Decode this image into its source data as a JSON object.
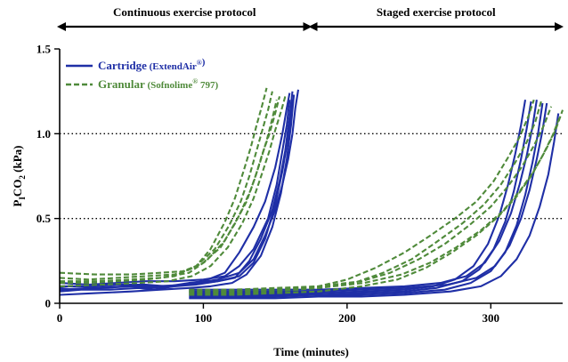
{
  "chart_data": {
    "type": "line",
    "title": "",
    "xlabel": "Time (minutes)",
    "ylabel": "PICO2 (kPa)",
    "ylabel_parts": {
      "base": "P",
      "sub1": "I",
      "mid": "CO",
      "sub2": "2",
      "unit": " (kPa)"
    },
    "xlim": [
      0,
      350
    ],
    "ylim": [
      0,
      1.5
    ],
    "x_ticks": [
      0,
      100,
      200,
      300
    ],
    "x_tick_labels": [
      "0",
      "100",
      "200",
      "300"
    ],
    "y_ticks": [
      0,
      0.5,
      1.0,
      1.5
    ],
    "y_tick_labels": [
      "0",
      "0.5",
      "1.0",
      "1.5"
    ],
    "reference_lines": [
      0.5,
      1.0
    ],
    "protocols": [
      {
        "label": "Continuous exercise protocol",
        "x_start": 0,
        "x_end": 175
      },
      {
        "label": "Staged exercise protocol",
        "x_start": 175,
        "x_end": 350
      }
    ],
    "legend": {
      "placement": "top-left",
      "entries": [
        {
          "name": "Cartridge",
          "detail": "ExtendAir",
          "sup": "®",
          "detail_after": "",
          "color": "#1f2fa6",
          "dash": "solid"
        },
        {
          "name": "Granular",
          "detail": "Sofnolime",
          "sup": "®",
          "detail_after": " 797",
          "color": "#4f8a3a",
          "dash": "dashed"
        }
      ]
    },
    "series": [
      {
        "group": "Cartridge",
        "color": "#1f2fa6",
        "dash": "solid",
        "x": [
          0,
          10,
          30,
          50,
          62,
          75,
          90,
          100,
          115,
          125,
          135,
          143,
          150,
          155,
          158,
          160
        ],
        "y": [
          0.09,
          0.08,
          0.09,
          0.1,
          0.09,
          0.1,
          0.12,
          0.13,
          0.18,
          0.3,
          0.45,
          0.6,
          0.8,
          1.0,
          1.15,
          1.24
        ]
      },
      {
        "group": "Cartridge",
        "color": "#1f2fa6",
        "dash": "solid",
        "x": [
          0,
          15,
          35,
          55,
          65,
          80,
          95,
          110,
          122,
          132,
          140,
          148,
          153,
          157,
          160,
          162
        ],
        "y": [
          0.07,
          0.08,
          0.08,
          0.09,
          0.08,
          0.1,
          0.11,
          0.13,
          0.15,
          0.25,
          0.38,
          0.55,
          0.72,
          0.9,
          1.1,
          1.25
        ]
      },
      {
        "group": "Cartridge",
        "color": "#1f2fa6",
        "dash": "solid",
        "x": [
          0,
          20,
          40,
          60,
          75,
          95,
          110,
          125,
          135,
          143,
          150,
          155,
          159,
          162,
          164,
          166
        ],
        "y": [
          0.1,
          0.1,
          0.11,
          0.11,
          0.1,
          0.12,
          0.14,
          0.18,
          0.26,
          0.4,
          0.55,
          0.7,
          0.85,
          1.0,
          1.15,
          1.26
        ]
      },
      {
        "group": "Cartridge",
        "color": "#1f2fa6",
        "dash": "solid",
        "x": [
          0,
          20,
          40,
          60,
          80,
          100,
          115,
          125,
          135,
          145,
          151,
          155,
          158,
          160
        ],
        "y": [
          0.12,
          0.11,
          0.12,
          0.13,
          0.13,
          0.14,
          0.16,
          0.22,
          0.32,
          0.5,
          0.7,
          0.9,
          1.05,
          1.2
        ]
      },
      {
        "group": "Cartridge",
        "color": "#1f2fa6",
        "dash": "solid",
        "x": [
          0,
          25,
          50,
          70,
          90,
          105,
          120,
          130,
          140,
          148,
          154,
          158,
          161,
          163
        ],
        "y": [
          0.05,
          0.06,
          0.07,
          0.08,
          0.09,
          0.1,
          0.12,
          0.17,
          0.28,
          0.45,
          0.65,
          0.85,
          1.05,
          1.23
        ]
      },
      {
        "group": "Cartridge",
        "color": "#1f2fa6",
        "dash": "solid",
        "x": [
          0,
          20,
          45,
          65,
          90,
          110,
          125,
          135,
          143,
          150,
          155,
          159,
          162
        ],
        "y": [
          0.08,
          0.09,
          0.1,
          0.1,
          0.11,
          0.13,
          0.16,
          0.24,
          0.38,
          0.58,
          0.78,
          0.98,
          1.2
        ]
      },
      {
        "group": "Granular",
        "color": "#4f8a3a",
        "dash": "dashed",
        "x": [
          0,
          20,
          40,
          60,
          80,
          95,
          105,
          115,
          122,
          128,
          133,
          137,
          141,
          144
        ],
        "y": [
          0.12,
          0.12,
          0.13,
          0.14,
          0.16,
          0.22,
          0.32,
          0.48,
          0.62,
          0.78,
          0.92,
          1.05,
          1.17,
          1.27
        ]
      },
      {
        "group": "Granular",
        "color": "#4f8a3a",
        "dash": "dashed",
        "x": [
          0,
          20,
          40,
          60,
          80,
          95,
          108,
          118,
          126,
          132,
          137,
          141,
          145,
          148
        ],
        "y": [
          0.15,
          0.14,
          0.15,
          0.16,
          0.17,
          0.22,
          0.32,
          0.46,
          0.6,
          0.75,
          0.9,
          1.02,
          1.14,
          1.25
        ]
      },
      {
        "group": "Granular",
        "color": "#4f8a3a",
        "dash": "dashed",
        "x": [
          0,
          25,
          50,
          70,
          88,
          100,
          112,
          122,
          130,
          136,
          141,
          146,
          150,
          153
        ],
        "y": [
          0.18,
          0.17,
          0.17,
          0.18,
          0.19,
          0.24,
          0.33,
          0.47,
          0.6,
          0.74,
          0.88,
          1.0,
          1.12,
          1.22
        ]
      },
      {
        "group": "Granular",
        "color": "#4f8a3a",
        "dash": "dashed",
        "x": [
          0,
          25,
          50,
          70,
          90,
          102,
          115,
          125,
          133,
          139,
          144,
          148,
          151
        ],
        "y": [
          0.13,
          0.13,
          0.14,
          0.15,
          0.18,
          0.25,
          0.37,
          0.52,
          0.67,
          0.82,
          0.96,
          1.09,
          1.2
        ]
      },
      {
        "group": "Granular",
        "color": "#4f8a3a",
        "dash": "dashed",
        "x": [
          0,
          30,
          55,
          75,
          92,
          105,
          117,
          127,
          135,
          141,
          146,
          150,
          154,
          157
        ],
        "y": [
          0.1,
          0.11,
          0.12,
          0.13,
          0.16,
          0.22,
          0.33,
          0.47,
          0.62,
          0.77,
          0.9,
          1.02,
          1.13,
          1.22
        ]
      },
      {
        "group": "Cartridge",
        "color": "#1f2fa6",
        "dash": "solid",
        "x": [
          90,
          120,
          150,
          180,
          210,
          240,
          260,
          275,
          288,
          298,
          306,
          312,
          317,
          321,
          324
        ],
        "y": [
          0.06,
          0.06,
          0.06,
          0.06,
          0.07,
          0.08,
          0.1,
          0.14,
          0.22,
          0.35,
          0.52,
          0.7,
          0.88,
          1.05,
          1.2
        ]
      },
      {
        "group": "Cartridge",
        "color": "#1f2fa6",
        "dash": "solid",
        "x": [
          90,
          120,
          150,
          180,
          210,
          240,
          262,
          280,
          292,
          302,
          310,
          316,
          321,
          325,
          328
        ],
        "y": [
          0.05,
          0.05,
          0.05,
          0.05,
          0.06,
          0.07,
          0.09,
          0.13,
          0.2,
          0.32,
          0.48,
          0.66,
          0.85,
          1.03,
          1.19
        ]
      },
      {
        "group": "Cartridge",
        "color": "#1f2fa6",
        "dash": "solid",
        "x": [
          90,
          120,
          150,
          180,
          210,
          240,
          265,
          283,
          296,
          306,
          314,
          320,
          325,
          329,
          332
        ],
        "y": [
          0.08,
          0.08,
          0.08,
          0.08,
          0.09,
          0.1,
          0.12,
          0.16,
          0.24,
          0.37,
          0.53,
          0.7,
          0.87,
          1.04,
          1.2
        ]
      },
      {
        "group": "Cartridge",
        "color": "#1f2fa6",
        "dash": "solid",
        "x": [
          90,
          120,
          150,
          180,
          210,
          240,
          268,
          286,
          300,
          310,
          318,
          324,
          329,
          333,
          336
        ],
        "y": [
          0.04,
          0.04,
          0.04,
          0.05,
          0.05,
          0.06,
          0.08,
          0.12,
          0.19,
          0.3,
          0.46,
          0.64,
          0.83,
          1.01,
          1.18
        ]
      },
      {
        "group": "Cartridge",
        "color": "#1f2fa6",
        "dash": "solid",
        "x": [
          90,
          120,
          150,
          180,
          210,
          240,
          270,
          290,
          303,
          313,
          321,
          327,
          332,
          336,
          339
        ],
        "y": [
          0.07,
          0.07,
          0.07,
          0.07,
          0.08,
          0.09,
          0.11,
          0.15,
          0.22,
          0.34,
          0.5,
          0.67,
          0.85,
          1.02,
          1.18
        ]
      },
      {
        "group": "Cartridge",
        "color": "#1f2fa6",
        "dash": "solid",
        "x": [
          90,
          120,
          150,
          180,
          210,
          240,
          272,
          293,
          307,
          318,
          327,
          334,
          340,
          344,
          347
        ],
        "y": [
          0.03,
          0.03,
          0.03,
          0.04,
          0.04,
          0.05,
          0.07,
          0.1,
          0.16,
          0.26,
          0.4,
          0.57,
          0.76,
          0.95,
          1.12
        ]
      },
      {
        "group": "Granular",
        "color": "#4f8a3a",
        "dash": "dashed",
        "x": [
          90,
          120,
          150,
          180,
          200,
          220,
          240,
          258,
          275,
          290,
          302,
          312,
          320,
          326,
          330
        ],
        "y": [
          0.07,
          0.07,
          0.08,
          0.1,
          0.14,
          0.21,
          0.3,
          0.4,
          0.5,
          0.6,
          0.72,
          0.86,
          0.98,
          1.1,
          1.2
        ]
      },
      {
        "group": "Granular",
        "color": "#4f8a3a",
        "dash": "dashed",
        "x": [
          90,
          120,
          150,
          180,
          205,
          225,
          245,
          262,
          280,
          295,
          307,
          317,
          325,
          331,
          335
        ],
        "y": [
          0.06,
          0.06,
          0.07,
          0.09,
          0.12,
          0.18,
          0.26,
          0.36,
          0.47,
          0.58,
          0.7,
          0.83,
          0.95,
          1.07,
          1.19
        ]
      },
      {
        "group": "Granular",
        "color": "#4f8a3a",
        "dash": "dashed",
        "x": [
          90,
          120,
          150,
          180,
          210,
          230,
          250,
          268,
          285,
          300,
          312,
          322,
          330,
          337,
          342
        ],
        "y": [
          0.08,
          0.08,
          0.09,
          0.1,
          0.13,
          0.18,
          0.26,
          0.35,
          0.46,
          0.57,
          0.69,
          0.81,
          0.93,
          1.05,
          1.16
        ]
      },
      {
        "group": "Granular",
        "color": "#4f8a3a",
        "dash": "dashed",
        "x": [
          90,
          120,
          150,
          180,
          210,
          235,
          255,
          273,
          290,
          305,
          318,
          328,
          336,
          343,
          348
        ],
        "y": [
          0.05,
          0.05,
          0.06,
          0.07,
          0.1,
          0.14,
          0.21,
          0.3,
          0.4,
          0.51,
          0.63,
          0.75,
          0.87,
          0.99,
          1.1
        ]
      },
      {
        "group": "Granular",
        "color": "#4f8a3a",
        "dash": "dashed",
        "x": [
          90,
          120,
          150,
          180,
          212,
          238,
          258,
          276,
          293,
          308,
          320,
          330,
          338,
          345,
          350
        ],
        "y": [
          0.07,
          0.07,
          0.08,
          0.09,
          0.12,
          0.17,
          0.24,
          0.33,
          0.43,
          0.54,
          0.66,
          0.78,
          0.9,
          1.02,
          1.14
        ]
      }
    ]
  }
}
